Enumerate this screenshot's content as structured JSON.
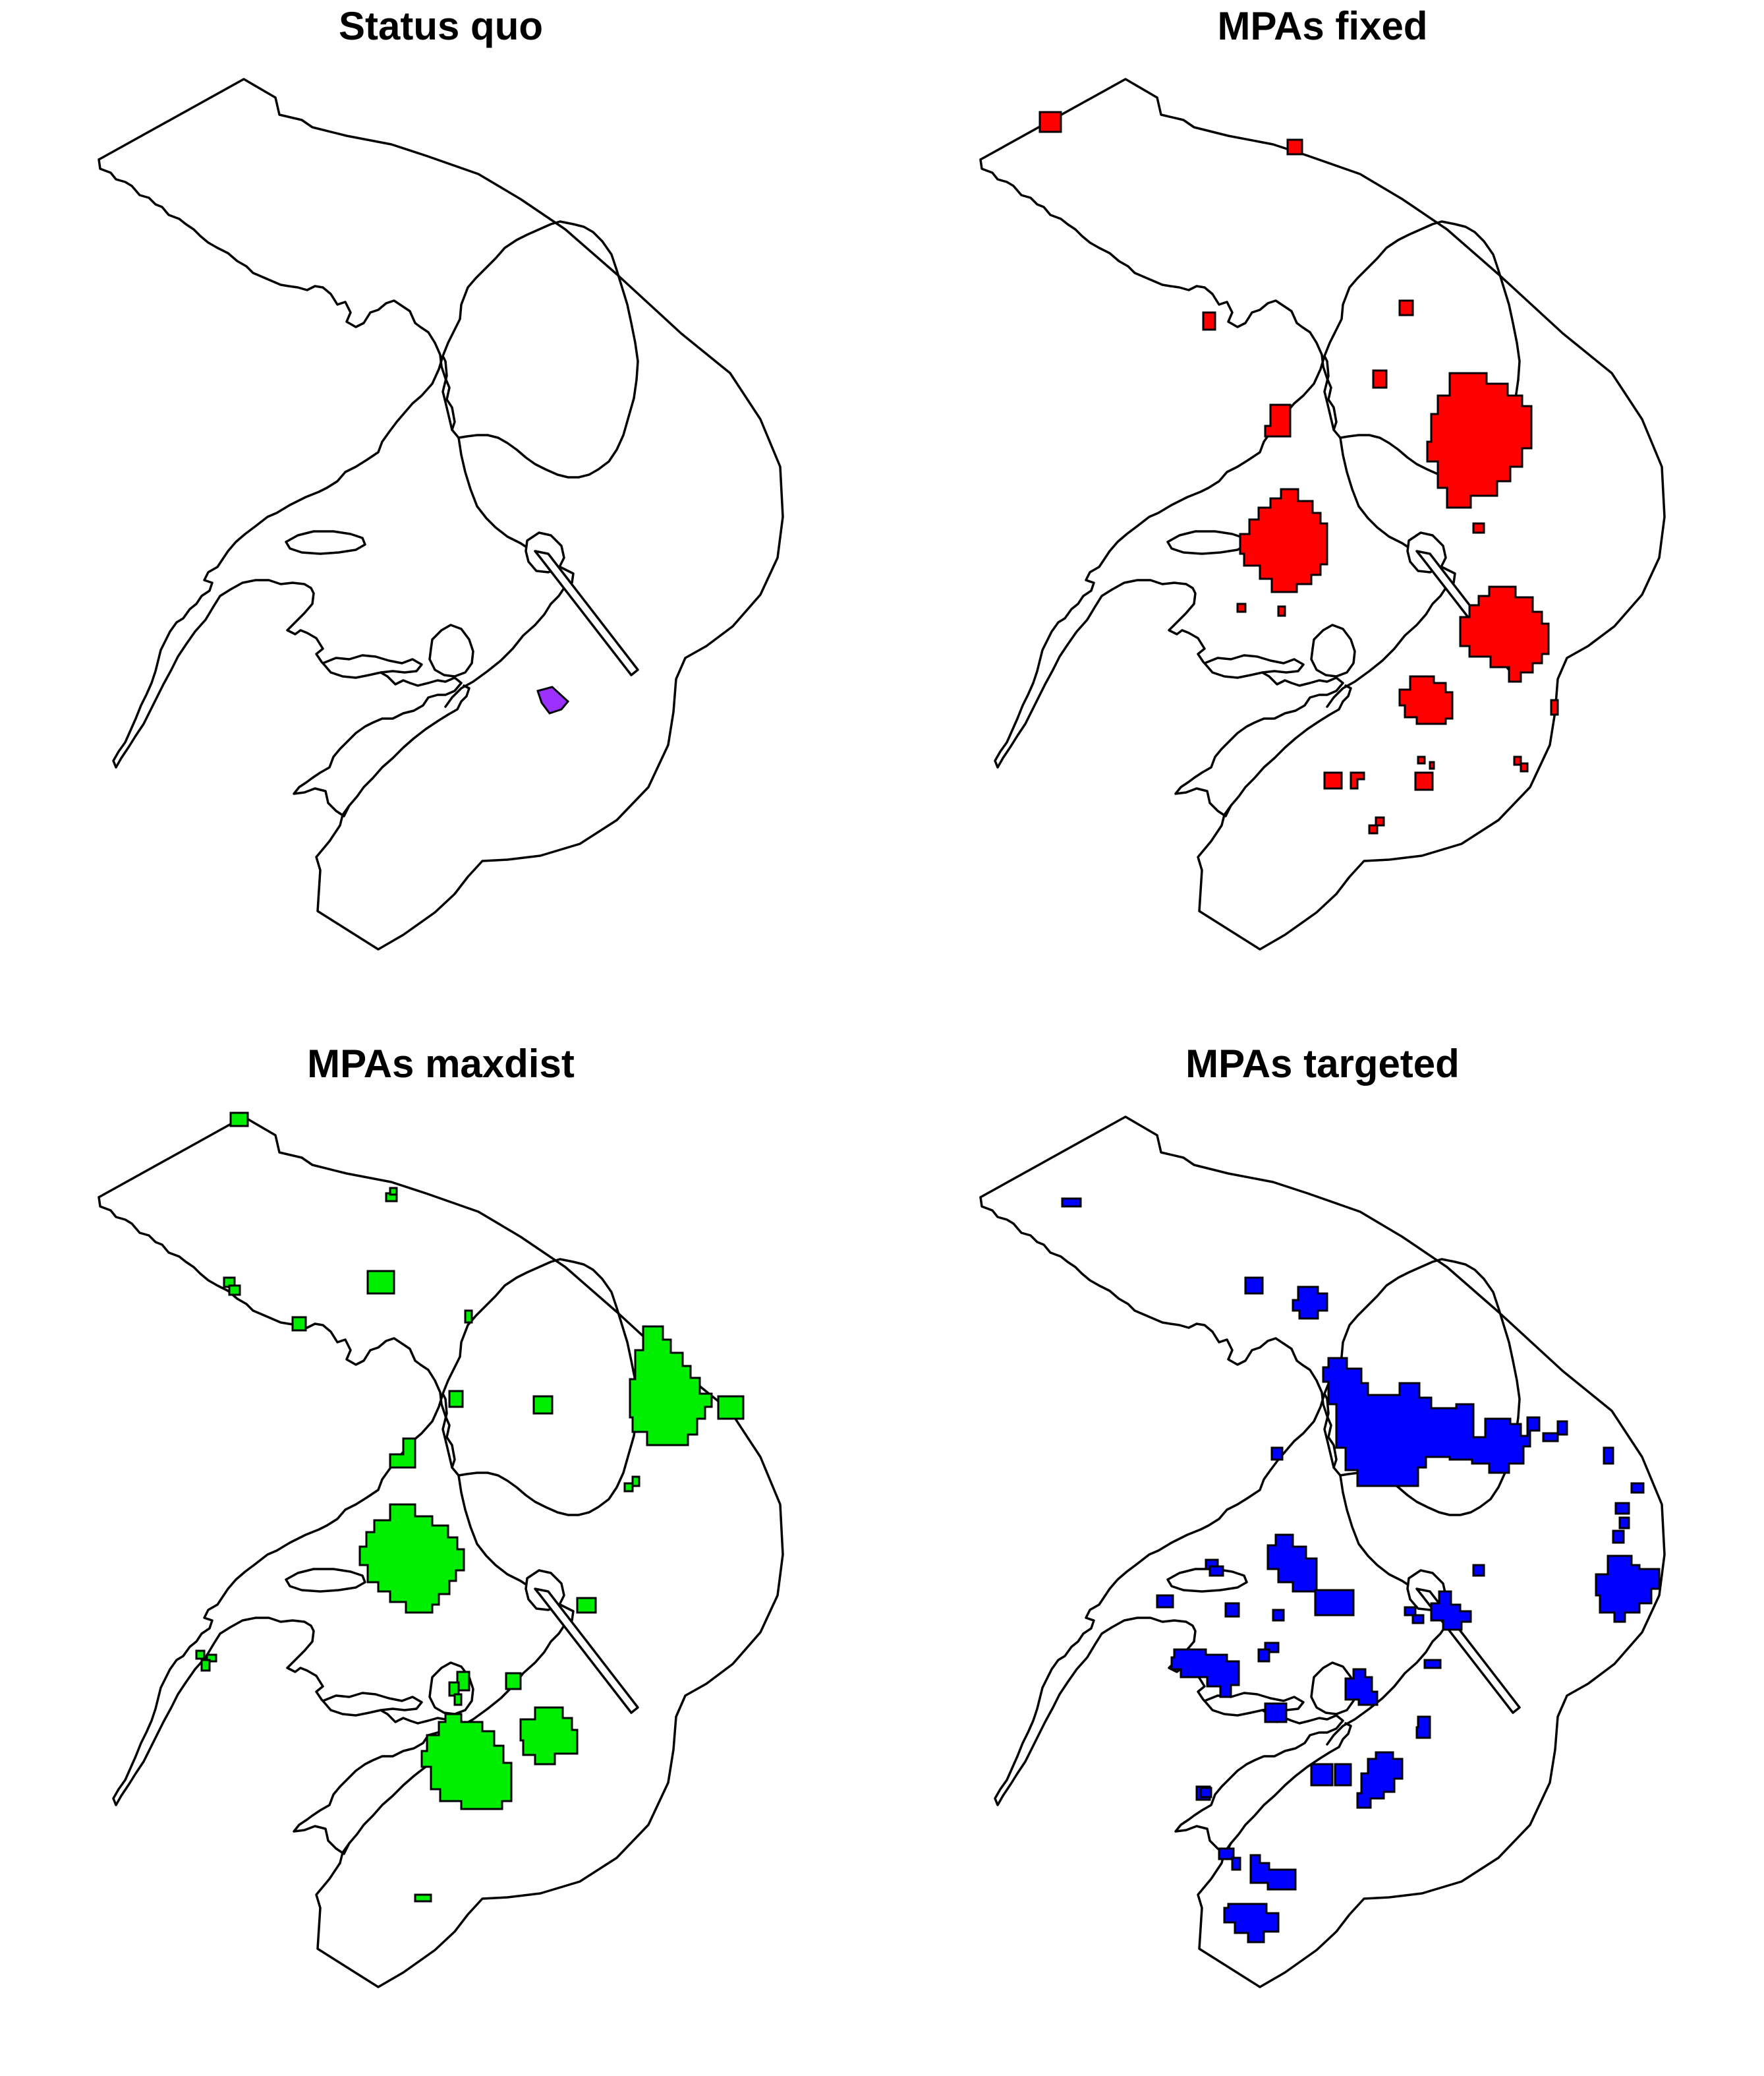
{
  "panels": [
    {
      "id": "status-quo",
      "title": "Status quo",
      "fill": "#9B30FF"
    },
    {
      "id": "fixed",
      "title": "MPAs fixed",
      "fill": "#FF0000"
    },
    {
      "id": "maxdist",
      "title": "MPAs maxdist",
      "fill": "#00EE00"
    },
    {
      "id": "targeted",
      "title": "MPAs targeted",
      "fill": "#0000FF"
    }
  ]
}
